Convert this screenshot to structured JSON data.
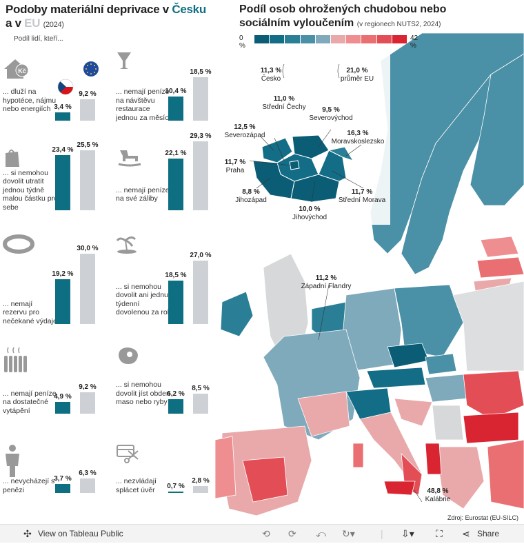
{
  "left_title": {
    "line1_a": "Podoby materiální deprivace v ",
    "line1_b": "Česku",
    "line2_a": "a v ",
    "line2_b": "EU",
    "year": "(2024)"
  },
  "subtitle": "Podíl lidí, kteří...",
  "colors": {
    "cz": "#0e6e82",
    "eu": "#cdd0d4"
  },
  "chart_data": {
    "type": "bar",
    "title": "Podoby materiální deprivace v Česku a v EU (2024)",
    "ylabel": "Podíl lidí, kteří...",
    "ylim": [
      0,
      30
    ],
    "series_names": [
      "Česko",
      "EU"
    ],
    "categories": [
      {
        "desc": "... dluží na hypotéce, nájmu nebo energiích",
        "icon": "house-icon",
        "cz": 3.4,
        "eu": 9.2,
        "cz_label": "3,4 %",
        "eu_label": "9,2 %"
      },
      {
        "desc": "... nemají peníze na návštěvu restaurace jednou za měsíc",
        "icon": "cocktail-icon",
        "cz": 10.4,
        "eu": 18.5,
        "cz_label": "10,4 %",
        "eu_label": "18,5 %"
      },
      {
        "desc": "... si nemohou dovolit utratit jednou týdně malou částku pro sebe",
        "icon": "shopping-bag-icon",
        "cz": 23.4,
        "eu": 25.5,
        "cz_label": "23,4 %",
        "eu_label": "25,5 %"
      },
      {
        "desc": "... nemají peníze na své záliby",
        "icon": "rocking-horse-icon",
        "cz": 22.1,
        "eu": 29.3,
        "cz_label": "22,1 %",
        "eu_label": "29,3 %"
      },
      {
        "desc": "... nemají rezervu pro nečekané výdaje",
        "icon": "life-ring-icon",
        "cz": 19.2,
        "eu": 30.0,
        "cz_label": "19,2 %",
        "eu_label": "30,0 %"
      },
      {
        "desc": "... si nemohou dovolit ani jednu týdenní dovolenou za rok",
        "icon": "palm-island-icon",
        "cz": 18.5,
        "eu": 27.0,
        "cz_label": "18,5 %",
        "eu_label": "27,0 %"
      },
      {
        "desc": "... nemají peníze na dostatečné vytápění",
        "icon": "radiator-icon",
        "cz": 4.9,
        "eu": 9.2,
        "cz_label": "4,9 %",
        "eu_label": "9,2 %"
      },
      {
        "desc": "... si nemohou dovolit jíst obden maso nebo ryby",
        "icon": "steak-icon",
        "cz": 6.2,
        "eu": 8.5,
        "cz_label": "6,2 %",
        "eu_label": "8,5 %"
      },
      {
        "desc": "... nevycházejí s penězi",
        "icon": "person-icon",
        "cz": 3.7,
        "eu": 6.3,
        "cz_label": "3,7 %",
        "eu_label": "6,3 %"
      },
      {
        "desc": "... nezvládají splácet úvěr",
        "icon": "scissors-card-icon",
        "cz": 0.7,
        "eu": 2.8,
        "cz_label": "0,7 %",
        "eu_label": "2,8 %"
      }
    ]
  },
  "map": {
    "title_line1": "Podíl osob ohrožených chudobou nebo",
    "title_line2": "sociálním vyloučením",
    "title_note": "(v regionech NUTS2, 2024)",
    "legend_min": "0 %",
    "legend_max": "42 %",
    "legend_colors": [
      "#0b5d76",
      "#136d86",
      "#2a7f96",
      "#4a90a6",
      "#7eaabb",
      "#e9a9aa",
      "#ef8e90",
      "#ea6f73",
      "#e34e56",
      "#d92432"
    ],
    "labels": {
      "cesko": {
        "value": "11,3 %",
        "name": "Česko"
      },
      "eu": {
        "value": "21,0 %",
        "name": "průměr EU"
      },
      "stredni_cechy": {
        "value": "11,0 %",
        "name": "Střední Čechy"
      },
      "severovychod": {
        "value": "9,5 %",
        "name": "Severovýchod"
      },
      "severozapad": {
        "value": "12,5 %",
        "name": "Severozápad"
      },
      "moravskoslezsko": {
        "value": "16,3 %",
        "name": "Moravskoslezsko"
      },
      "praha": {
        "value": "11,7 %",
        "name": "Praha"
      },
      "jihozapad": {
        "value": "8,8 %",
        "name": "Jihozápad"
      },
      "stredni_morava": {
        "value": "11,7 %",
        "name": "Střední Morava"
      },
      "jihovychod": {
        "value": "10,0 %",
        "name": "Jihovýchod"
      },
      "zapadni_flandry": {
        "value": "11,2 %",
        "name": "Západní Flandry"
      },
      "kalabrie": {
        "value": "48,8 %",
        "name": "Kalábrie"
      }
    }
  },
  "source": "Zdroj: Eurostat (EU-SILC)",
  "footer": {
    "view_label": "View on Tableau Public",
    "share_label": "Share"
  }
}
